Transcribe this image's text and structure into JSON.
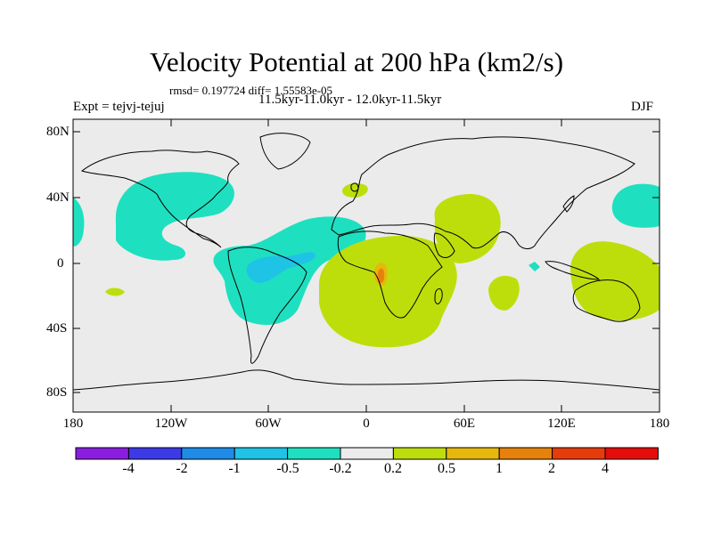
{
  "header": {
    "title": "Velocity Potential at 200 hPa (km2/s)",
    "stats": "rmsd= 0.197724 diff= 1.55583e-05",
    "experiment": "Expt = tejvj-tejuj",
    "period": "11.5kyr-11.0kyr - 12.0kyr-11.5kyr",
    "season": "DJF"
  },
  "axes": {
    "lat_labels": [
      "80N",
      "40N",
      "0",
      "40S",
      "80S"
    ],
    "lon_labels": [
      "180",
      "120W",
      "60W",
      "0",
      "60E",
      "120E",
      "180"
    ]
  },
  "colorbar": {
    "labels": [
      "-4",
      "-2",
      "-1",
      "-0.5",
      "-0.2",
      "0.2",
      "0.5",
      "1",
      "2",
      "4"
    ],
    "colors": [
      "#8a1ee0",
      "#3c3ae6",
      "#1e8ce6",
      "#1ec3e6",
      "#1ee0c0",
      "#ebebeb",
      "#bede0c",
      "#e6b80c",
      "#e6820c",
      "#e63c0c",
      "#e60c0c"
    ]
  },
  "map_colors": {
    "neutral": "#ebebeb",
    "neg_weak": "#1ee0c0",
    "neg_mid": "#1ec3e6",
    "pos_weak": "#bede0c",
    "pos_mid": "#e6b80c",
    "pos_strong": "#e6820c"
  }
}
